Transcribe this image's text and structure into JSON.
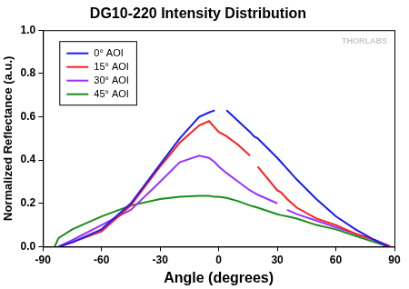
{
  "chart_data": {
    "type": "line",
    "title": "DG10-220 Intensity Distribution",
    "x_label": "Angle (degrees)",
    "y_label": "Normalized Reflectance (a.u.)",
    "annotations": [
      {
        "text": "THORLABS"
      }
    ],
    "x": [
      -84,
      -82,
      -75,
      -60,
      -45,
      -30,
      -20,
      -10,
      -5,
      -2,
      0,
      4,
      10,
      16,
      18,
      20,
      30,
      32,
      35,
      40,
      50,
      60,
      70,
      80,
      87,
      88
    ],
    "series": [
      {
        "name": "0° AOI",
        "color": "#1a1aff",
        "values": [
          null,
          0,
          0.02,
          0.08,
          0.2,
          0.38,
          0.5,
          0.6,
          0.62,
          0.63,
          null,
          0.63,
          0.58,
          0.53,
          0.51,
          0.5,
          0.41,
          0.39,
          0.36,
          0.31,
          0.22,
          0.14,
          0.08,
          0.03,
          0,
          null
        ]
      },
      {
        "name": "15° AOI",
        "color": "#ff1f1f",
        "values": [
          null,
          0,
          0.02,
          0.07,
          0.19,
          0.37,
          0.48,
          0.56,
          0.58,
          0.55,
          0.53,
          0.51,
          0.47,
          0.42,
          null,
          0.37,
          0.26,
          0.25,
          0.22,
          0.18,
          0.13,
          0.1,
          0.06,
          0.03,
          0.005,
          0
        ]
      },
      {
        "name": "30° AOI",
        "color": "#9933ff",
        "values": [
          null,
          0,
          0.03,
          0.1,
          0.17,
          0.3,
          0.39,
          0.42,
          0.41,
          0.39,
          0.37,
          0.34,
          0.3,
          0.26,
          0.25,
          0.24,
          0.2,
          null,
          0.17,
          0.15,
          0.12,
          0.09,
          0.06,
          0.03,
          0,
          null
        ]
      },
      {
        "name": "45° AOI",
        "color": "#1a8c1a",
        "values": [
          0,
          0.04,
          0.08,
          0.14,
          0.19,
          0.22,
          0.23,
          0.235,
          0.235,
          0.23,
          0.23,
          0.225,
          0.21,
          0.19,
          0.185,
          0.18,
          0.15,
          0.145,
          0.14,
          0.13,
          0.1,
          0.08,
          0.05,
          0.02,
          0,
          null
        ]
      }
    ],
    "xlim": [
      -90,
      90
    ],
    "xticks": [
      -90,
      -60,
      -30,
      0,
      30,
      60,
      90
    ],
    "ylim": [
      0,
      1.0
    ],
    "yticks": [
      {
        "value": 0,
        "label": "0.0"
      },
      {
        "value": 0.2,
        "label": "0.2"
      },
      {
        "value": 0.4,
        "label": "0.4"
      },
      {
        "value": 0.6,
        "label": "0.6"
      },
      {
        "value": 0.8,
        "label": "0.8"
      },
      {
        "value": 1.0,
        "label": "1.0"
      }
    ],
    "grid": false,
    "legend": "top-left"
  }
}
